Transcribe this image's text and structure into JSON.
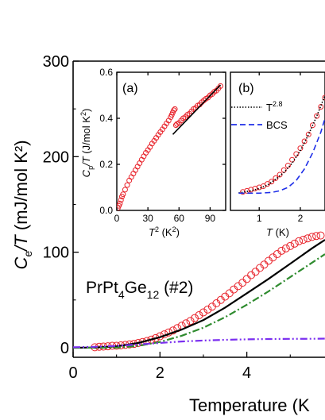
{
  "chart_data": [
    {
      "id": "main",
      "type": "line",
      "xlabel": "Temperature (K",
      "ylabel": "C_e/T (mJ/mol K^2)",
      "ylabel_parts": {
        "sym": "C",
        "sub": "e",
        "rest": "/T (mJ/mol K",
        "sup": "2",
        "close": ")"
      },
      "xlim": [
        0,
        5.8
      ],
      "ylim": [
        -10,
        300
      ],
      "xticks": [
        0,
        2,
        4
      ],
      "yticks": [
        0,
        100,
        200,
        300
      ],
      "xtick_labels": [
        "0",
        "2",
        "4"
      ],
      "ytick_labels": [
        "0",
        "100",
        "200",
        "300"
      ],
      "annotation": {
        "base": "PrPt",
        "sub1": "4",
        "mid": "Ge",
        "sub2": "12",
        "tail": " (#2)"
      },
      "series": [
        {
          "kind": "scatter",
          "color": "#e8222a",
          "x": [
            0.5,
            0.6,
            0.7,
            0.8,
            0.9,
            1.0,
            1.1,
            1.2,
            1.3,
            1.4,
            1.5,
            1.6,
            1.7,
            1.8,
            1.9,
            2.0,
            2.1,
            2.2,
            2.3,
            2.4,
            2.5,
            2.6,
            2.7,
            2.8,
            2.9,
            3.0,
            3.1,
            3.2,
            3.3,
            3.4,
            3.5,
            3.6,
            3.7,
            3.8,
            3.9,
            4.0,
            4.1,
            4.2,
            4.3,
            4.4,
            4.5,
            4.6,
            4.7,
            4.8,
            4.9,
            5.0,
            5.1,
            5.2,
            5.3,
            5.4,
            5.5,
            5.6,
            5.7
          ],
          "y": [
            0.5,
            1,
            1.2,
            1.5,
            2,
            2,
            2.5,
            3,
            3.5,
            4,
            5,
            6,
            7,
            8.5,
            10,
            12,
            14,
            16,
            18,
            20.5,
            23,
            25.5,
            28,
            31,
            34,
            37,
            40,
            43,
            46.5,
            50,
            53.5,
            57,
            61,
            64.5,
            68,
            72,
            76,
            79.5,
            83.5,
            87,
            91,
            94.5,
            98,
            101.5,
            104,
            106.5,
            109,
            111.5,
            113,
            114.5,
            116,
            117,
            117.5
          ]
        },
        {
          "kind": "line",
          "style": "solid",
          "color": "#000000",
          "x": [
            0,
            0.5,
            1,
            1.5,
            2,
            2.5,
            3,
            3.5,
            4,
            4.5,
            5,
            5.5,
            5.8
          ],
          "y": [
            0,
            0.2,
            1.5,
            5,
            11,
            19,
            29,
            42,
            57,
            72,
            88,
            104,
            113
          ]
        },
        {
          "kind": "line",
          "style": "dashdot",
          "color": "#2e8b2e",
          "x": [
            0,
            1,
            1.5,
            2,
            2.5,
            3,
            3.5,
            4,
            4.5,
            5,
            5.5,
            5.8
          ],
          "y": [
            0,
            0.1,
            2,
            6,
            12.5,
            21,
            32,
            45,
            59,
            74,
            89,
            98
          ]
        },
        {
          "kind": "line",
          "style": "dashdotdot",
          "color": "#7b2ff0",
          "x": [
            0,
            0.5,
            1,
            1.5,
            2,
            2.5,
            3,
            3.5,
            4,
            4.5,
            5,
            5.5,
            5.8
          ],
          "y": [
            0.5,
            1,
            2,
            3.5,
            5,
            6.5,
            7.5,
            8.3,
            8.8,
            9.1,
            9.3,
            9.4,
            9.5
          ]
        }
      ]
    },
    {
      "id": "inset-a",
      "type": "scatter",
      "label": "(a)",
      "xlabel": "T^2 (K^2)",
      "ylabel": "C_p/T (J/mol K^2)",
      "xlim": [
        0,
        105
      ],
      "ylim": [
        0,
        0.6
      ],
      "xticks": [
        0,
        30,
        60,
        90
      ],
      "yticks": [
        0.0,
        0.2,
        0.4,
        0.6
      ],
      "xtick_labels": [
        "0",
        "30",
        "60",
        "90"
      ],
      "ytick_labels": [
        "0.0",
        "0.2",
        "0.4",
        "0.6"
      ],
      "series": [
        {
          "kind": "scatter",
          "color": "#e8222a",
          "x": [
            1,
            2,
            3,
            4,
            5,
            6,
            8,
            10,
            12,
            14,
            16,
            18,
            20,
            22,
            24,
            26,
            28,
            30,
            32,
            34,
            36,
            38,
            40,
            42,
            44,
            46,
            48,
            50,
            52,
            53,
            54,
            55,
            56,
            57,
            58,
            60,
            62,
            64,
            66,
            68,
            70,
            72,
            74,
            76,
            78,
            80,
            82,
            84,
            86,
            88,
            90,
            92,
            94,
            96,
            98,
            100
          ],
          "y": [
            0.01,
            0.02,
            0.03,
            0.045,
            0.06,
            0.07,
            0.09,
            0.11,
            0.13,
            0.145,
            0.16,
            0.175,
            0.19,
            0.205,
            0.22,
            0.235,
            0.25,
            0.262,
            0.275,
            0.29,
            0.302,
            0.315,
            0.328,
            0.34,
            0.352,
            0.365,
            0.378,
            0.39,
            0.405,
            0.415,
            0.425,
            0.435,
            0.44,
            0.37,
            0.375,
            0.38,
            0.39,
            0.4,
            0.405,
            0.415,
            0.42,
            0.43,
            0.44,
            0.445,
            0.455,
            0.46,
            0.47,
            0.478,
            0.485,
            0.49,
            0.5,
            0.505,
            0.515,
            0.52,
            0.53,
            0.54
          ]
        },
        {
          "kind": "line",
          "style": "solid",
          "color": "#000000",
          "x": [
            54,
            100
          ],
          "y": [
            0.33,
            0.545
          ]
        }
      ]
    },
    {
      "id": "inset-b",
      "type": "scatter",
      "label": "(b)",
      "xlabel": "T (K)",
      "xlim": [
        0.3,
        2.6
      ],
      "ylim": [
        0,
        0.6
      ],
      "xticks": [
        1,
        2
      ],
      "xtick_labels": [
        "1",
        "2"
      ],
      "legend": [
        {
          "name": "T",
          "sup": "2.8",
          "style": "dotted",
          "color": "#000000"
        },
        {
          "name": "BCS",
          "style": "dashed",
          "color": "#1f2fe8"
        }
      ],
      "series": [
        {
          "kind": "scatter",
          "color": "#e8222a",
          "x": [
            0.6,
            0.7,
            0.8,
            0.9,
            1.0,
            1.1,
            1.2,
            1.3,
            1.4,
            1.5,
            1.6,
            1.7,
            1.8,
            1.9,
            2.0,
            2.1,
            2.2,
            2.3,
            2.4,
            2.5,
            2.6
          ],
          "y": [
            0.08,
            0.085,
            0.09,
            0.095,
            0.1,
            0.105,
            0.115,
            0.125,
            0.14,
            0.155,
            0.175,
            0.195,
            0.22,
            0.245,
            0.27,
            0.3,
            0.33,
            0.37,
            0.41,
            0.45,
            0.49
          ]
        },
        {
          "kind": "line",
          "style": "dotted",
          "color": "#000000",
          "x": [
            0.5,
            0.8,
            1.0,
            1.2,
            1.4,
            1.6,
            1.8,
            2.0,
            2.2,
            2.4,
            2.6
          ],
          "y": [
            0.076,
            0.085,
            0.095,
            0.11,
            0.135,
            0.165,
            0.205,
            0.26,
            0.33,
            0.41,
            0.5
          ]
        },
        {
          "kind": "line",
          "style": "dashed",
          "color": "#1f2fe8",
          "x": [
            0.5,
            1.0,
            1.3,
            1.5,
            1.7,
            1.9,
            2.1,
            2.3,
            2.5,
            2.6
          ],
          "y": [
            0.075,
            0.075,
            0.078,
            0.085,
            0.1,
            0.13,
            0.18,
            0.25,
            0.34,
            0.4
          ]
        }
      ]
    }
  ]
}
